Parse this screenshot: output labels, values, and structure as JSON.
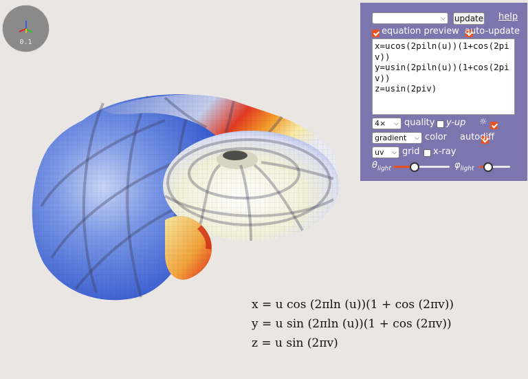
{
  "gizmo": {
    "zoom_label": "0.1",
    "icon": "axes-icon"
  },
  "panel": {
    "preset_select": {
      "value": ""
    },
    "update_button": "update",
    "help_link": "help",
    "equation_preview": {
      "label": "equation preview",
      "checked": true
    },
    "auto_update": {
      "label": "auto-update",
      "checked": true
    },
    "equation_text": "x=ucos(2piln(u))(1+cos(2piv))\ny=usin(2piln(u))(1+cos(2piv))\nz=usin(2piv)",
    "quality": {
      "value": "4×",
      "label": "quality"
    },
    "y_up": {
      "label": "y-up",
      "checked": false
    },
    "sun_toggle": {
      "label": "☼",
      "checked": true
    },
    "color": {
      "value": "gradient",
      "label": "color"
    },
    "autodiff": {
      "label": "autodiff",
      "checked": true
    },
    "grid": {
      "value": "uv",
      "label": "grid"
    },
    "xray": {
      "label": "x-ray",
      "checked": false
    },
    "theta_light": {
      "symbol": "θ",
      "sub": "light",
      "value": 0.36
    },
    "phi_light": {
      "symbol": "φ",
      "sub": "light",
      "value": 0.2
    }
  },
  "equations": {
    "x": "x = u cos (2πln (u))(1 + cos (2πv))",
    "y": "y = u sin (2πln (u))(1 + cos (2πv))",
    "z": "z = u sin (2πv)"
  },
  "colors": {
    "panel": "#7d76ae",
    "accent": "#e8521f",
    "surface_blue": "#4f72d8",
    "surface_red": "#e0231a"
  }
}
